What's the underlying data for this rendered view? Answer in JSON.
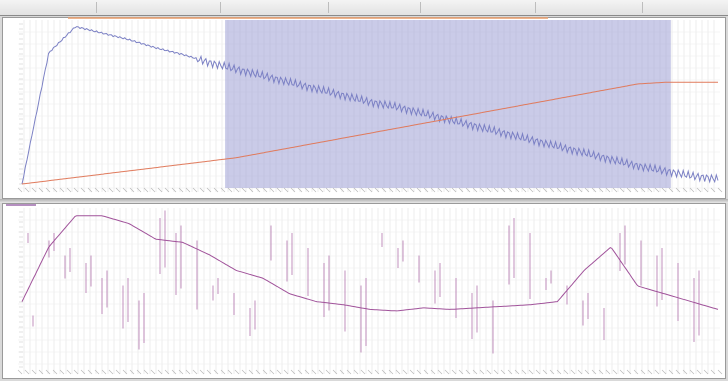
{
  "colors": {
    "selection": "#9ea0d6",
    "trace_blue": "#7b80c4",
    "trace_orange": "#e07a5c",
    "trace_purple": "#a0529a",
    "grid": "#dcdcdc"
  },
  "selection": {
    "start_fraction": 0.295,
    "end_fraction": 0.93
  },
  "chart_data": [
    {
      "type": "line",
      "series": [
        {
          "values": [
            0,
            80,
            96,
            92,
            88,
            83,
            79,
            74,
            70,
            66,
            62,
            58,
            54,
            50,
            47,
            43,
            39,
            35,
            31,
            27,
            23,
            19,
            15,
            11,
            8,
            5,
            3
          ]
        },
        {
          "values": [
            0,
            2,
            4,
            6,
            8,
            10,
            12,
            14,
            16,
            19,
            22,
            25,
            28,
            31,
            34,
            37,
            40,
            43,
            46,
            49,
            52,
            55,
            58,
            61,
            62,
            62,
            62
          ]
        }
      ],
      "ylim": [
        0,
        100
      ],
      "grid": true
    },
    {
      "type": "line",
      "series": [
        {
          "values": [
            40,
            75,
            95,
            95,
            90,
            80,
            78,
            70,
            60,
            55,
            45,
            40,
            38,
            35,
            34,
            36,
            35,
            36,
            37,
            38,
            40,
            60,
            75,
            50,
            45,
            40,
            35
          ]
        }
      ],
      "ylim": [
        0,
        100
      ],
      "grid": true
    }
  ]
}
